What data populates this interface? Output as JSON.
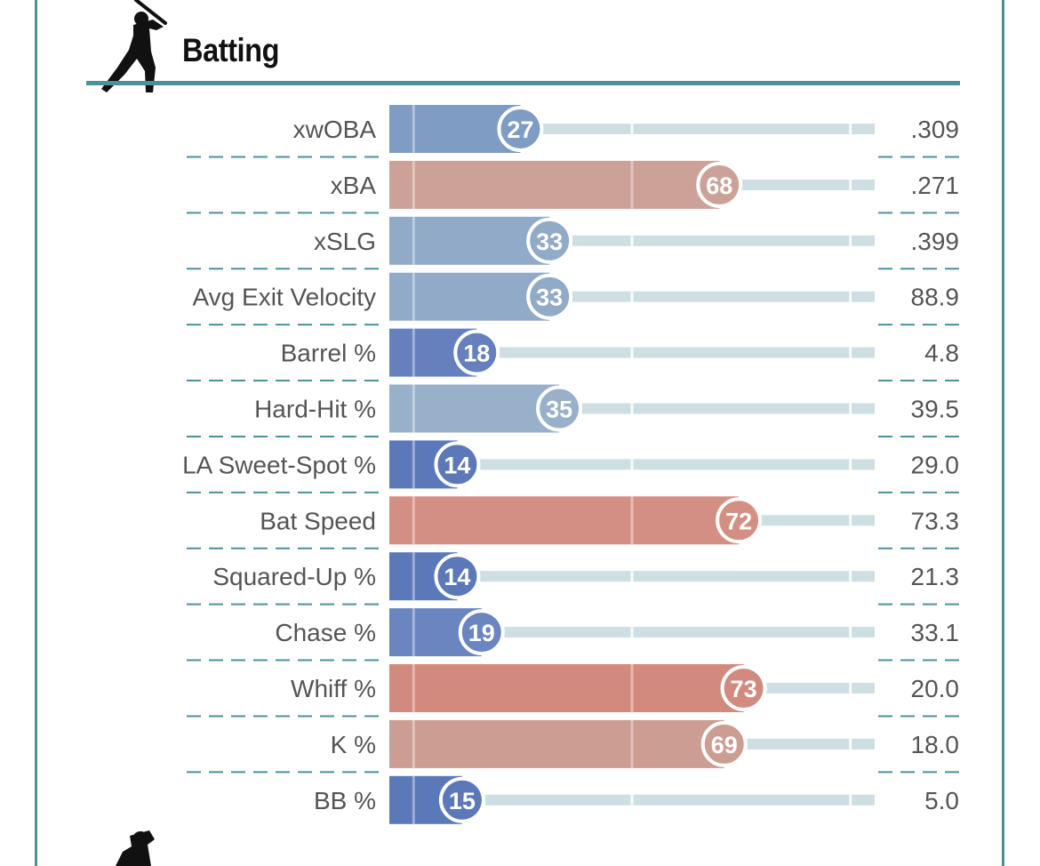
{
  "section": {
    "title": "Batting"
  },
  "colors": {
    "teal": "#4a9199",
    "track": "#cddfe2",
    "high_red": "#d38f83",
    "low_blue": "#5b78b8"
  },
  "icons": {
    "header": "batter-silhouette-icon",
    "footer": "pitcher-silhouette-icon"
  },
  "chart_data": {
    "type": "bar",
    "orientation": "horizontal",
    "title": "Batting",
    "xlim": [
      0,
      100
    ],
    "categories": [
      "xwOBA",
      "xBA",
      "xSLG",
      "Avg Exit Velocity",
      "Barrel %",
      "Hard-Hit %",
      "LA Sweet-Spot %",
      "Bat Speed",
      "Squared-Up %",
      "Chase %",
      "Whiff %",
      "K %",
      "BB %"
    ],
    "percentiles": [
      27,
      68,
      33,
      33,
      18,
      35,
      14,
      72,
      14,
      19,
      73,
      69,
      15
    ],
    "stat_values": [
      ".309",
      ".271",
      ".399",
      "88.9",
      "4.8",
      "39.5",
      "29.0",
      "73.3",
      "21.3",
      "33.1",
      "20.0",
      "18.0",
      "5.0"
    ],
    "bar_colors": [
      "#7f9cc4",
      "#cca298",
      "#91aac8",
      "#91aac8",
      "#6580bd",
      "#98b0c9",
      "#5b78b8",
      "#d38f83",
      "#5b78b8",
      "#6a85bf",
      "#d38a7e",
      "#cc9d92",
      "#5b78b8"
    ]
  }
}
